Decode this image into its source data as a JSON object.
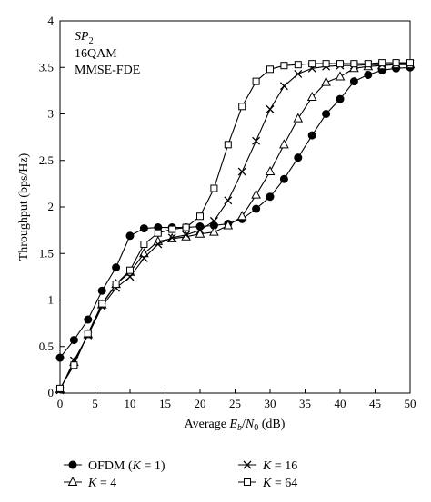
{
  "chart_data": {
    "type": "line",
    "xlabel_prefix": "Average ",
    "xlabel_var": "E",
    "xlabel_sub": "b",
    "xlabel_slash": "/",
    "xlabel_var2": "N",
    "xlabel_sub2": "0",
    "xlabel_unit": " (dB)",
    "ylabel": "Throughput (bps/Hz)",
    "xlim": [
      0,
      50
    ],
    "ylim": [
      0,
      4
    ],
    "x_ticks": [
      "0",
      "5",
      "10",
      "15",
      "20",
      "25",
      "30",
      "35",
      "40",
      "45",
      "50"
    ],
    "y_ticks": [
      "0",
      "0.5",
      "1",
      "1.5",
      "2",
      "2.5",
      "3",
      "3.5",
      "4"
    ],
    "grid": false,
    "annotations": {
      "line1_var": "SP",
      "line1_sub": "2",
      "line2": "16QAM",
      "line3": "MMSE-FDE"
    },
    "series": [
      {
        "key": "ofdm",
        "legend_label": "OFDM (",
        "legend_var": "K",
        "legend_rest": " = 1)",
        "marker": "filled-circle",
        "x": [
          0,
          2,
          4,
          6,
          8,
          10,
          12,
          14,
          16,
          18,
          20,
          22,
          24,
          26,
          28,
          30,
          32,
          34,
          36,
          38,
          40,
          42,
          44,
          46,
          48,
          50
        ],
        "y": [
          0.38,
          0.57,
          0.79,
          1.1,
          1.35,
          1.69,
          1.77,
          1.78,
          1.78,
          1.78,
          1.79,
          1.8,
          1.82,
          1.87,
          1.98,
          2.11,
          2.3,
          2.53,
          2.77,
          3.0,
          3.16,
          3.35,
          3.42,
          3.47,
          3.49,
          3.5
        ]
      },
      {
        "key": "k4",
        "legend_label": "",
        "legend_var": "K",
        "legend_rest": " = 4",
        "marker": "triangle",
        "x": [
          0,
          2,
          4,
          6,
          8,
          10,
          12,
          14,
          16,
          18,
          20,
          22,
          24,
          26,
          28,
          30,
          32,
          34,
          36,
          38,
          40,
          42,
          44,
          46,
          48,
          50
        ],
        "y": [
          0.04,
          0.33,
          0.63,
          0.95,
          1.17,
          1.3,
          1.5,
          1.63,
          1.66,
          1.68,
          1.71,
          1.73,
          1.8,
          1.9,
          2.13,
          2.38,
          2.67,
          2.95,
          3.18,
          3.34,
          3.4,
          3.49,
          3.51,
          3.52,
          3.53,
          3.53
        ]
      },
      {
        "key": "k16",
        "legend_label": "",
        "legend_var": "K",
        "legend_rest": " = 16",
        "marker": "cross",
        "x": [
          0,
          2,
          4,
          6,
          8,
          10,
          12,
          14,
          16,
          18,
          20,
          22,
          24,
          26,
          28,
          30,
          32,
          34,
          36,
          38,
          40,
          42,
          44,
          46,
          48,
          50
        ],
        "y": [
          0.03,
          0.35,
          0.62,
          0.93,
          1.13,
          1.25,
          1.45,
          1.6,
          1.67,
          1.7,
          1.75,
          1.85,
          2.07,
          2.38,
          2.71,
          3.05,
          3.3,
          3.43,
          3.49,
          3.51,
          3.52,
          3.52,
          3.53,
          3.53,
          3.54,
          3.54
        ]
      },
      {
        "key": "k64",
        "legend_label": "",
        "legend_var": "K",
        "legend_rest": " = 64",
        "marker": "square",
        "x": [
          0,
          2,
          4,
          6,
          8,
          10,
          12,
          14,
          16,
          18,
          20,
          22,
          24,
          26,
          28,
          30,
          32,
          34,
          36,
          38,
          40,
          42,
          44,
          46,
          48,
          50
        ],
        "y": [
          0.05,
          0.3,
          0.64,
          0.96,
          1.17,
          1.32,
          1.6,
          1.72,
          1.76,
          1.78,
          1.9,
          2.2,
          2.67,
          3.08,
          3.35,
          3.48,
          3.52,
          3.53,
          3.54,
          3.54,
          3.54,
          3.54,
          3.54,
          3.55,
          3.55,
          3.55
        ]
      }
    ],
    "legend_order": [
      "ofdm",
      "k16",
      "k4",
      "k64"
    ],
    "legend_placement": "bottom"
  }
}
